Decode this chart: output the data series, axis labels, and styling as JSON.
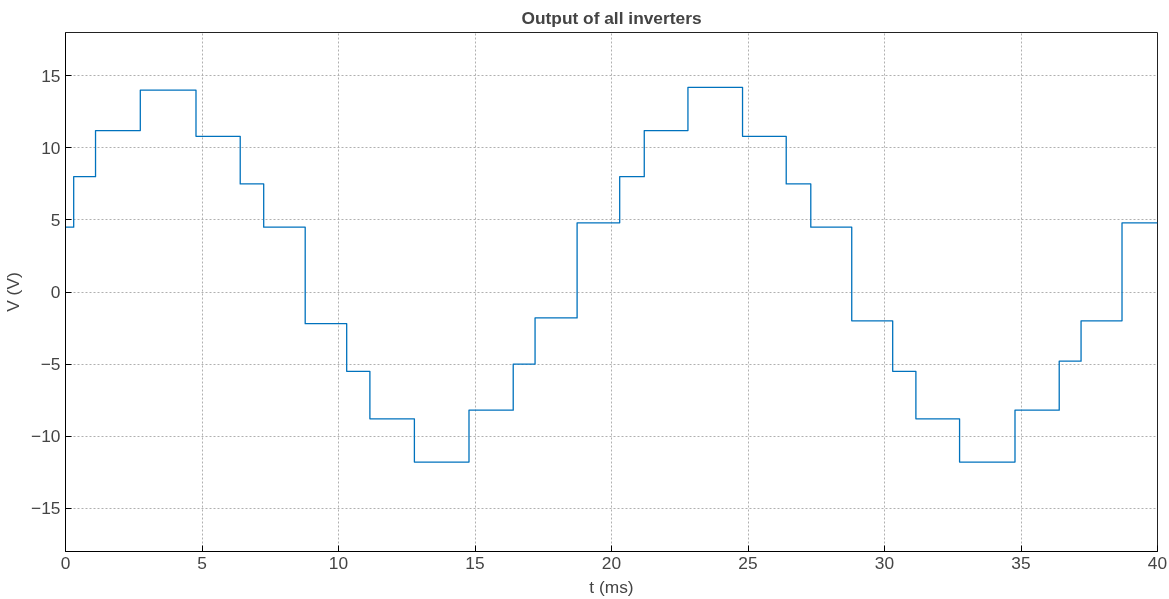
{
  "chart_data": {
    "type": "step",
    "title": "Output of all inverters",
    "xlabel": "t (ms)",
    "ylabel": "V (V)",
    "xlim": [
      0,
      40
    ],
    "xticks": [
      0,
      5,
      10,
      15,
      20,
      25,
      30,
      35,
      40
    ],
    "ylim": [
      -18,
      18
    ],
    "yticks": [
      -15,
      -10,
      -5,
      0,
      5,
      10,
      15
    ],
    "grid": true,
    "marker": "none",
    "line_style": "solid",
    "series": [
      {
        "color": "#0072bd",
        "x": [
          0,
          0.3,
          1.1,
          2.74,
          4.78,
          6.4,
          7.26,
          8.78,
          10.3,
          11.15,
          12.78,
          14.78,
          16.4,
          17.2,
          18.74,
          20.3,
          21.2,
          22.8,
          24.8,
          26.4,
          27.3,
          28.8,
          30.3,
          31.15,
          32.75,
          34.78,
          36.4,
          37.2,
          38.7,
          40
        ],
        "values": [
          4.5,
          8,
          11.2,
          14,
          10.8,
          7.5,
          4.5,
          -2.2,
          -5.5,
          -8.8,
          -11.8,
          -8.2,
          -5,
          -1.8,
          4.8,
          8,
          11.2,
          14.2,
          10.8,
          7.5,
          4.5,
          -2,
          -5.5,
          -8.8,
          -11.8,
          -8.2,
          -4.8,
          -2,
          4.8,
          4.8
        ]
      }
    ]
  }
}
